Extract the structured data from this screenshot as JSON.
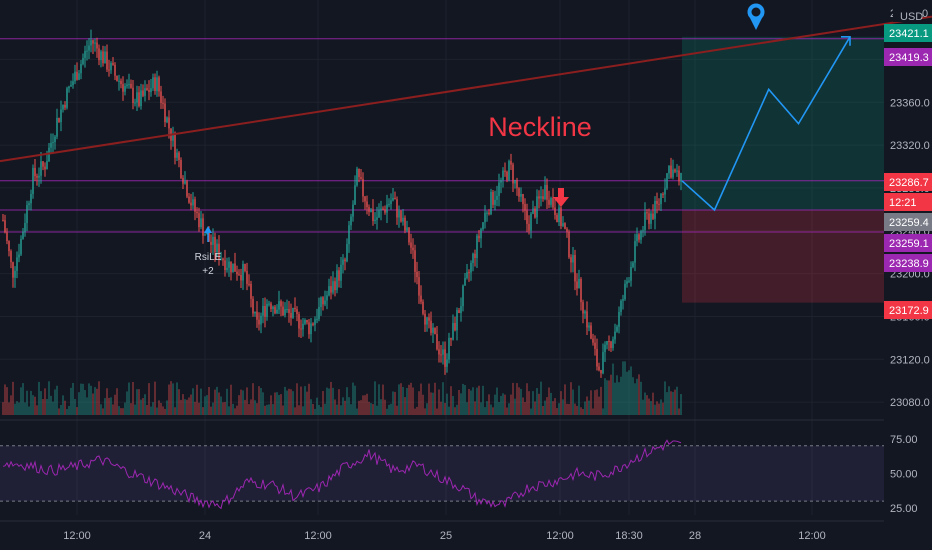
{
  "chart_data": {
    "type": "candlestick",
    "title": "",
    "currency": "USD",
    "axis_top_partial": [
      "2",
      "0"
    ],
    "y_ticks": [
      23080.0,
      23120.0,
      23160.0,
      23200.0,
      23240.0,
      23280.0,
      23320.0,
      23360.0,
      23400.0
    ],
    "y_tick_labels": [
      "23080.0",
      "23120.0",
      "23160.0",
      "23200.0",
      "23240.0",
      "23280.0",
      "23320.0",
      "23360.0",
      ""
    ],
    "ylim": [
      23068,
      23448
    ],
    "x_tick_labels": [
      "12:00",
      "24",
      "12:00",
      "25",
      "12:00",
      "18:30",
      "28",
      "12:00"
    ],
    "annotation_text": "Neckline",
    "signal_label": "RsiLE",
    "signal_sub": "+2",
    "price_badges": [
      {
        "label": "23421.1",
        "value": 23421.1,
        "color": "#089981"
      },
      {
        "label": "23419.3",
        "value": 23419.3,
        "color": "#9c27b0"
      },
      {
        "label": "23286.7",
        "value": 23286.7,
        "color": "#f23645"
      },
      {
        "label": "12:21",
        "value": 23272.0,
        "color": "#f23645"
      },
      {
        "label": "23259.4",
        "value": 23259.4,
        "color": "#787b86"
      },
      {
        "label": "23259.1",
        "value": 23259.1,
        "color": "#9c27b0"
      },
      {
        "label": "23238.9",
        "value": 23238.9,
        "color": "#9c27b0"
      },
      {
        "label": "23172.9",
        "value": 23172.9,
        "color": "#f23645"
      }
    ],
    "horizontal_levels": [
      {
        "value": 23419.3,
        "color": "#9c27b0"
      },
      {
        "value": 23286.7,
        "color": "#9c27b0"
      },
      {
        "value": 23259.4,
        "color": "#9c27b0"
      },
      {
        "value": 23238.9,
        "color": "#9c27b0"
      }
    ],
    "position": {
      "entry": 23259.4,
      "target": 23421.1,
      "stop": 23172.9
    },
    "projection_path": [
      {
        "bar": 0,
        "price": 23286.7
      },
      {
        "bar": 12,
        "price": 23259.4
      },
      {
        "bar": 32,
        "price": 23372.0
      },
      {
        "bar": 43,
        "price": 23340.0
      },
      {
        "bar": 62,
        "price": 23421.1
      }
    ],
    "trendline": {
      "start_price": 23305.0,
      "end_price": 23440.0
    },
    "rsi": {
      "y_ticks": [
        75.0,
        50.0,
        25.0
      ],
      "y_tick_labels": [
        "75.00",
        "50.00",
        "25.00"
      ],
      "upper": 70,
      "lower": 30,
      "ylim": [
        20,
        85
      ]
    },
    "grid": true,
    "colors": {
      "background": "#131722",
      "up": "#26a69a",
      "down": "#ef5350",
      "neckline_text": "#f23645",
      "projection": "#2196f3",
      "trendline": "#8b1e1e",
      "rsi_line": "#9c27b0"
    }
  }
}
